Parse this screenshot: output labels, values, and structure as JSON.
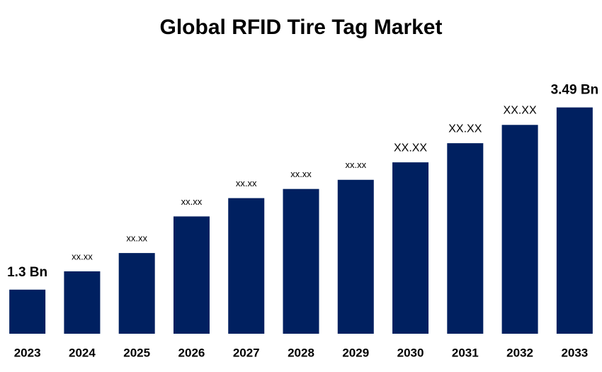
{
  "chart_data": {
    "type": "bar",
    "title": "Global RFID Tire Tag Market",
    "categories": [
      "2023",
      "2024",
      "2025",
      "2026",
      "2027",
      "2028",
      "2029",
      "2030",
      "2031",
      "2032",
      "2033"
    ],
    "values": [
      1.3,
      1.52,
      1.74,
      2.18,
      2.4,
      2.51,
      2.62,
      2.83,
      3.06,
      3.28,
      3.49
    ],
    "value_labels": [
      "1.3 Bn",
      "xx.xx",
      "xx.xx",
      "xx.xx",
      "xx.xx",
      "xx.xx",
      "xx.xx",
      "XX.XX",
      "XX.XX",
      "XX.XX",
      "3.49 Bn"
    ],
    "color": "#002060",
    "ylim": [
      0.77,
      3.64
    ]
  }
}
